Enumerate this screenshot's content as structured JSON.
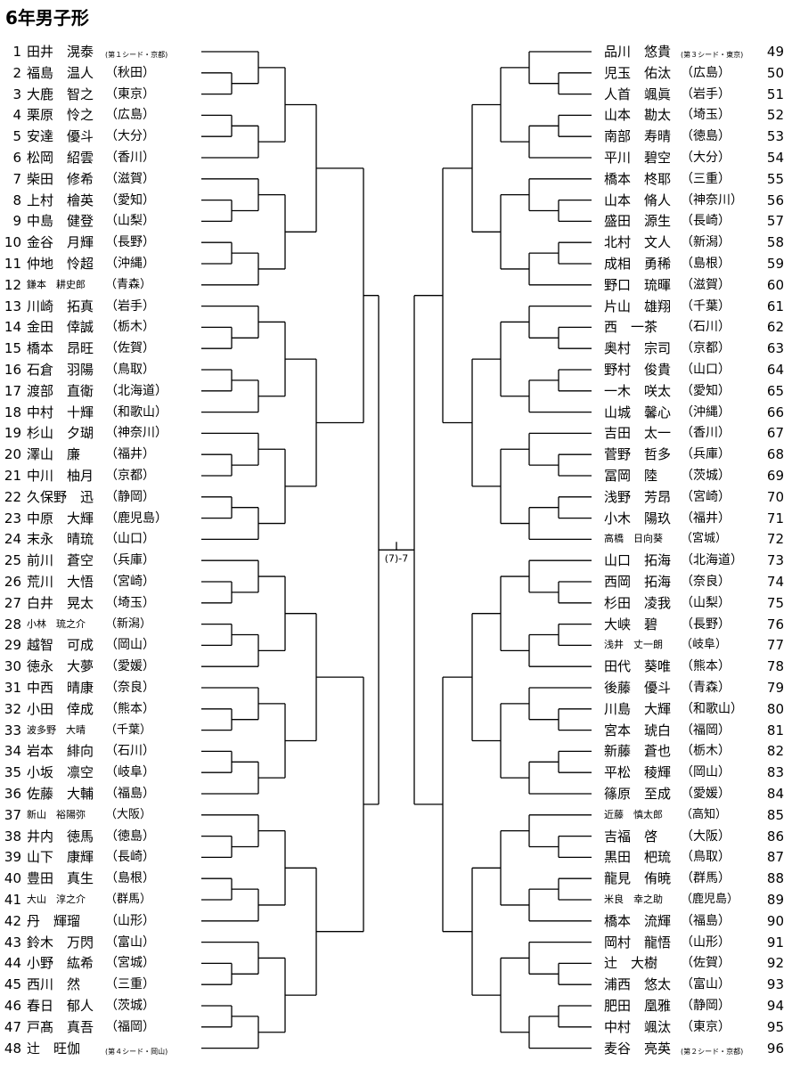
{
  "title": "6年男子形",
  "left": [
    {
      "num": "1",
      "name": "田井　滉泰",
      "seed": "(第１シード・京都)"
    },
    {
      "num": "2",
      "name": "福島　温人",
      "pref": "（秋田）"
    },
    {
      "num": "3",
      "name": "大鹿　智之",
      "pref": "（東京）"
    },
    {
      "num": "4",
      "name": "栗原　怜之",
      "pref": "（広島）"
    },
    {
      "num": "5",
      "name": "安達　優斗",
      "pref": "（大分）"
    },
    {
      "num": "6",
      "name": "松岡　紹雲",
      "pref": "（香川）"
    },
    {
      "num": "7",
      "name": "柴田　修希",
      "pref": "（滋賀）"
    },
    {
      "num": "8",
      "name": "上村　檜英",
      "pref": "（愛知）"
    },
    {
      "num": "9",
      "name": "中島　健登",
      "pref": "（山梨）"
    },
    {
      "num": "10",
      "name": "金谷　月輝",
      "pref": "（長野）"
    },
    {
      "num": "11",
      "name": "仲地　怜超",
      "pref": "（沖縄）"
    },
    {
      "num": "12",
      "name": "鎌本　耕史郎",
      "pref": "（青森）",
      "small": true
    },
    {
      "num": "13",
      "name": "川崎　拓真",
      "pref": "（岩手）"
    },
    {
      "num": "14",
      "name": "金田　倖誠",
      "pref": "（栃木）"
    },
    {
      "num": "15",
      "name": "橋本　昂旺",
      "pref": "（佐賀）"
    },
    {
      "num": "16",
      "name": "石倉　羽陽",
      "pref": "（鳥取）"
    },
    {
      "num": "17",
      "name": "渡部　直衛",
      "pref": "（北海道）"
    },
    {
      "num": "18",
      "name": "中村　十輝",
      "pref": "（和歌山）"
    },
    {
      "num": "19",
      "name": "杉山　夕瑚",
      "pref": "（神奈川）"
    },
    {
      "num": "20",
      "name": "澤山　廉",
      "pref": "（福井）"
    },
    {
      "num": "21",
      "name": "中川　柚月",
      "pref": "（京都）"
    },
    {
      "num": "22",
      "name": "久保野　迅",
      "pref": "（静岡）"
    },
    {
      "num": "23",
      "name": "中原　大輝",
      "pref": "（鹿児島）"
    },
    {
      "num": "24",
      "name": "末永　晴琉",
      "pref": "（山口）"
    },
    {
      "num": "25",
      "name": "前川　蒼空",
      "pref": "（兵庫）"
    },
    {
      "num": "26",
      "name": "荒川　大悟",
      "pref": "（宮崎）"
    },
    {
      "num": "27",
      "name": "白井　晃太",
      "pref": "（埼玉）"
    },
    {
      "num": "28",
      "name": "小林　琉之介",
      "pref": "（新潟）",
      "small": true
    },
    {
      "num": "29",
      "name": "越智　可成",
      "pref": "（岡山）"
    },
    {
      "num": "30",
      "name": "徳永　大夢",
      "pref": "（愛媛）"
    },
    {
      "num": "31",
      "name": "中西　晴康",
      "pref": "（奈良）"
    },
    {
      "num": "32",
      "name": "小田　倖成",
      "pref": "（熊本）"
    },
    {
      "num": "33",
      "name": "波多野　大晴",
      "pref": "（千葉）",
      "small": true
    },
    {
      "num": "34",
      "name": "岩本　緋向",
      "pref": "（石川）"
    },
    {
      "num": "35",
      "name": "小坂　凛空",
      "pref": "（岐阜）"
    },
    {
      "num": "36",
      "name": "佐藤　大輔",
      "pref": "（福島）"
    },
    {
      "num": "37",
      "name": "新山　裕陽弥",
      "pref": "（大阪）",
      "small": true
    },
    {
      "num": "38",
      "name": "井内　徳馬",
      "pref": "（徳島）"
    },
    {
      "num": "39",
      "name": "山下　康輝",
      "pref": "（長崎）"
    },
    {
      "num": "40",
      "name": "豊田　真生",
      "pref": "（島根）"
    },
    {
      "num": "41",
      "name": "大山　淳之介",
      "pref": "（群馬）",
      "small": true
    },
    {
      "num": "42",
      "name": "丹　輝瑠",
      "pref": "（山形）"
    },
    {
      "num": "43",
      "name": "鈴木　万閃",
      "pref": "（富山）"
    },
    {
      "num": "44",
      "name": "小野　紘希",
      "pref": "（宮城）"
    },
    {
      "num": "45",
      "name": "西川　然",
      "pref": "（三重）"
    },
    {
      "num": "46",
      "name": "春日　郁人",
      "pref": "（茨城）"
    },
    {
      "num": "47",
      "name": "戸髙　真吾",
      "pref": "（福岡）"
    },
    {
      "num": "48",
      "name": "辻　旺伽",
      "seed": "(第４シード・岡山)"
    }
  ],
  "right": [
    {
      "num": "49",
      "name": "品川　悠貴",
      "seed": "(第３シード・東京)"
    },
    {
      "num": "50",
      "name": "児玉　佑汰",
      "pref": "（広島）"
    },
    {
      "num": "51",
      "name": "人首　颯眞",
      "pref": "（岩手）"
    },
    {
      "num": "52",
      "name": "山本　勘太",
      "pref": "（埼玉）"
    },
    {
      "num": "53",
      "name": "南部　寿晴",
      "pref": "（徳島）"
    },
    {
      "num": "54",
      "name": "平川　碧空",
      "pref": "（大分）"
    },
    {
      "num": "55",
      "name": "橋本　柊耶",
      "pref": "（三重）"
    },
    {
      "num": "56",
      "name": "山本　脩人",
      "pref": "（神奈川）"
    },
    {
      "num": "57",
      "name": "盛田　源生",
      "pref": "（長崎）"
    },
    {
      "num": "58",
      "name": "北村　文人",
      "pref": "（新潟）"
    },
    {
      "num": "59",
      "name": "成相　勇稀",
      "pref": "（島根）"
    },
    {
      "num": "60",
      "name": "野口　琉暉",
      "pref": "（滋賀）"
    },
    {
      "num": "61",
      "name": "片山　雄翔",
      "pref": "（千葉）"
    },
    {
      "num": "62",
      "name": "西　一茶",
      "pref": "（石川）"
    },
    {
      "num": "63",
      "name": "奥村　宗司",
      "pref": "（京都）"
    },
    {
      "num": "64",
      "name": "野村　俊貴",
      "pref": "（山口）"
    },
    {
      "num": "65",
      "name": "一木　咲太",
      "pref": "（愛知）"
    },
    {
      "num": "66",
      "name": "山城　馨心",
      "pref": "（沖縄）"
    },
    {
      "num": "67",
      "name": "吉田　太一",
      "pref": "（香川）"
    },
    {
      "num": "68",
      "name": "菅野　哲多",
      "pref": "（兵庫）"
    },
    {
      "num": "69",
      "name": "冨岡　陸",
      "pref": "（茨城）"
    },
    {
      "num": "70",
      "name": "浅野　芳昂",
      "pref": "（宮崎）"
    },
    {
      "num": "71",
      "name": "小木　陽玖",
      "pref": "（福井）"
    },
    {
      "num": "72",
      "name": "高橋　日向葵",
      "pref": "（宮城）",
      "small": true
    },
    {
      "num": "73",
      "name": "山口　拓海",
      "pref": "（北海道）"
    },
    {
      "num": "74",
      "name": "西岡　拓海",
      "pref": "（奈良）"
    },
    {
      "num": "75",
      "name": "杉田　凌我",
      "pref": "（山梨）"
    },
    {
      "num": "76",
      "name": "大峡　碧",
      "pref": "（長野）"
    },
    {
      "num": "77",
      "name": "浅井　丈一朗",
      "pref": "（岐阜）",
      "small": true
    },
    {
      "num": "78",
      "name": "田代　葵唯",
      "pref": "（熊本）"
    },
    {
      "num": "79",
      "name": "後藤　優斗",
      "pref": "（青森）"
    },
    {
      "num": "80",
      "name": "川島　大輝",
      "pref": "（和歌山）"
    },
    {
      "num": "81",
      "name": "宮本　琥白",
      "pref": "（福岡）"
    },
    {
      "num": "82",
      "name": "新藤　蒼也",
      "pref": "（栃木）"
    },
    {
      "num": "83",
      "name": "平松　稜輝",
      "pref": "（岡山）"
    },
    {
      "num": "84",
      "name": "篠原　至成",
      "pref": "（愛媛）"
    },
    {
      "num": "85",
      "name": "近藤　慎太郎",
      "pref": "（高知）",
      "small": true
    },
    {
      "num": "86",
      "name": "吉福　啓",
      "pref": "（大阪）"
    },
    {
      "num": "87",
      "name": "黒田　杷琉",
      "pref": "（鳥取）"
    },
    {
      "num": "88",
      "name": "龍見　侑暁",
      "pref": "（群馬）"
    },
    {
      "num": "89",
      "name": "米良　幸之助",
      "pref": "（鹿児島）",
      "small": true
    },
    {
      "num": "90",
      "name": "橋本　流輝",
      "pref": "（福島）"
    },
    {
      "num": "91",
      "name": "岡村　龍悟",
      "pref": "（山形）"
    },
    {
      "num": "92",
      "name": "辻　大樹",
      "pref": "（佐賀）"
    },
    {
      "num": "93",
      "name": "浦西　悠太",
      "pref": "（富山）"
    },
    {
      "num": "94",
      "name": "肥田　凰雅",
      "pref": "（静岡）"
    },
    {
      "num": "95",
      "name": "中村　颯汰",
      "pref": "（東京）"
    },
    {
      "num": "96",
      "name": "麦谷　亮英",
      "seed": "(第２シード・京都)"
    }
  ],
  "bracket": {
    "left": {
      "r1": [
        "1-1",
        "1-2",
        "1-3",
        "1-4",
        "1-5",
        "1-6",
        "1-7",
        "1-8",
        "2-1",
        "2-2",
        "2-3",
        "2-4",
        "2-5",
        "2-6",
        "2-7",
        "2-8"
      ],
      "r2": [
        "1-9",
        "1-10",
        "1-11",
        "1-12",
        "1-13",
        "1-14",
        "1-15",
        "1-16",
        "2-9",
        "2-10",
        "2-11",
        "2-12",
        "2-13",
        "2-14",
        "2-15",
        "2-16"
      ],
      "r3": [
        "1-17",
        "1-18",
        "1-19",
        "1-20",
        "2-17",
        "2-18",
        "2-19",
        "2-20"
      ],
      "r4": [
        "1-21",
        "1-22",
        "2-21",
        "2-22"
      ],
      "r5": [
        "(7)-1",
        "(7)-2"
      ],
      "semi": "(7)-5"
    },
    "right": {
      "r1": [
        "3-1",
        "3-2",
        "3-3",
        "3-4",
        "3-5",
        "3-6",
        "3-7",
        "3-8",
        "4-1",
        "4-2",
        "4-3",
        "4-4",
        "4-5",
        "4-6",
        "4-7",
        "4-8"
      ],
      "r2": [
        "3-9",
        "3-10",
        "3-11",
        "3-12",
        "3-13",
        "3-14",
        "3-15",
        "3-16",
        "4-9",
        "4-10",
        "4-11",
        "4-12",
        "4-13",
        "4-14",
        "4-15",
        "4-16"
      ],
      "r3": [
        "3-17",
        "3-18",
        "3-19",
        "3-20",
        "4-17",
        "4-18",
        "4-19",
        "4-20"
      ],
      "r4": [
        "3-21",
        "3-22",
        "4-21",
        "4-22"
      ],
      "r5": [
        "(7)-3",
        "(7)-4"
      ],
      "semi": "(7)-6"
    },
    "final": "(7)-7"
  }
}
